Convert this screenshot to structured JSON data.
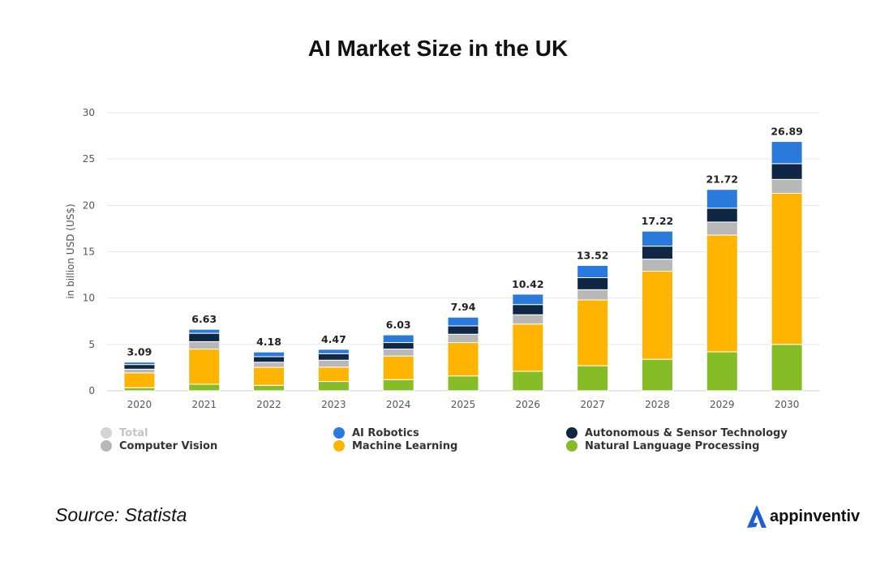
{
  "title": "AI Market Size in the UK",
  "source": "Source: Statista",
  "brand": {
    "name": "appinventiv",
    "logo_icon": "appinventiv-logo-icon",
    "logo_color": "#1f5fd6"
  },
  "chart_data": {
    "type": "bar",
    "stacked": true,
    "title": "AI Market Size in the UK",
    "xlabel": "",
    "ylabel": "in billion USD (US$)",
    "ylim": [
      0,
      30
    ],
    "yticks": [
      0,
      5,
      10,
      15,
      20,
      25,
      30
    ],
    "grid": true,
    "legend_position": "bottom",
    "categories": [
      "2020",
      "2021",
      "2022",
      "2023",
      "2024",
      "2025",
      "2026",
      "2027",
      "2028",
      "2029",
      "2030"
    ],
    "series": [
      {
        "name": "Natural Language Processing",
        "color": "#86bc25",
        "values": [
          0.33,
          0.7,
          0.58,
          1.0,
          1.2,
          1.6,
          2.1,
          2.7,
          3.4,
          4.2,
          5.0
        ]
      },
      {
        "name": "Machine Learning",
        "color": "#ffb400",
        "values": [
          1.6,
          3.8,
          1.95,
          1.55,
          2.55,
          3.6,
          5.1,
          7.1,
          9.5,
          12.6,
          16.3
        ]
      },
      {
        "name": "Computer Vision",
        "color": "#b8b8b8",
        "values": [
          0.4,
          0.8,
          0.55,
          0.75,
          0.75,
          0.9,
          1.0,
          1.1,
          1.3,
          1.4,
          1.5
        ]
      },
      {
        "name": "Autonomous & Sensor Technology",
        "color": "#0f2744",
        "values": [
          0.5,
          0.9,
          0.6,
          0.7,
          0.7,
          0.9,
          1.1,
          1.3,
          1.4,
          1.5,
          1.7
        ]
      },
      {
        "name": "AI Robotics",
        "color": "#2a7ade",
        "values": [
          0.26,
          0.43,
          0.5,
          0.47,
          0.83,
          0.94,
          1.12,
          1.32,
          1.62,
          2.02,
          2.39
        ]
      }
    ],
    "totals": [
      "3.09",
      "6.63",
      "4.18",
      "4.47",
      "6.03",
      "7.94",
      "10.42",
      "13.52",
      "17.22",
      "21.72",
      "26.89"
    ],
    "legend": [
      {
        "label": "Total",
        "color": "#d4d4d4",
        "muted": true
      },
      {
        "label": "AI Robotics",
        "color": "#2a7ade"
      },
      {
        "label": "Autonomous & Sensor Technology",
        "color": "#0f2744"
      },
      {
        "label": "Computer Vision",
        "color": "#b8b8b8"
      },
      {
        "label": "Machine Learning",
        "color": "#ffb400"
      },
      {
        "label": "Natural Language Processing",
        "color": "#86bc25"
      }
    ]
  }
}
